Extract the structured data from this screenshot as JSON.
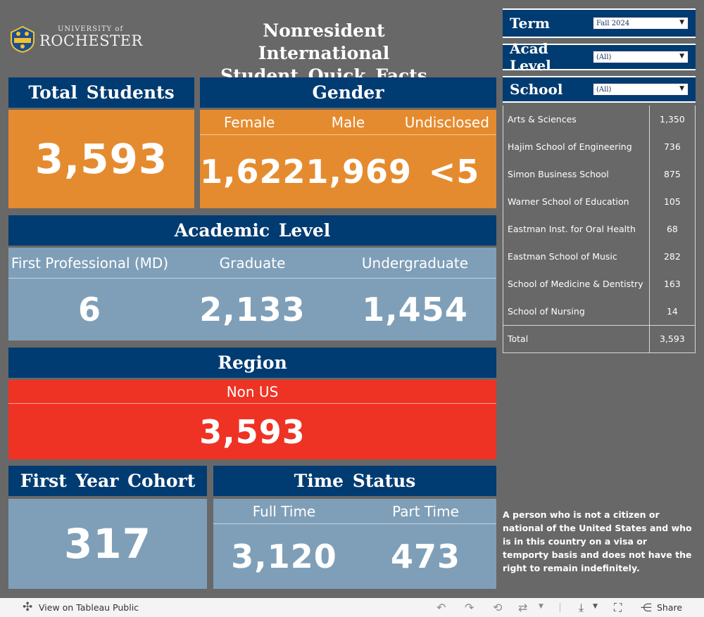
{
  "header": {
    "logo_small": "UNIVERSITY of",
    "logo_large": "ROCHESTER",
    "title_line1": "Nonresident International",
    "title_line2": "Student Quick Facts"
  },
  "total_students": {
    "header": "Total Students",
    "value": "3,593"
  },
  "gender": {
    "header": "Gender",
    "columns": [
      {
        "label": "Female",
        "value": "1,622"
      },
      {
        "label": "Male",
        "value": "1,969"
      },
      {
        "label": "Undisclosed",
        "value": "<5"
      }
    ]
  },
  "academic_level": {
    "header": "Academic Level",
    "columns": [
      {
        "label": "First Professional (MD)",
        "value": "6"
      },
      {
        "label": "Graduate",
        "value": "2,133"
      },
      {
        "label": "Undergraduate",
        "value": "1,454"
      }
    ]
  },
  "region": {
    "header": "Region",
    "label": "Non US",
    "value": "3,593"
  },
  "first_year_cohort": {
    "header": "First Year Cohort",
    "value": "317"
  },
  "time_status": {
    "header": "Time Status",
    "columns": [
      {
        "label": "Full Time",
        "value": "3,120"
      },
      {
        "label": "Part Time",
        "value": "473"
      }
    ]
  },
  "filters": {
    "term": {
      "label": "Term",
      "value": "Fall 2024"
    },
    "acad_level": {
      "label": "Acad Level",
      "value": "(All)"
    },
    "school": {
      "label": "School",
      "value": "(All)"
    }
  },
  "schools": {
    "rows": [
      {
        "name": "Arts & Sciences",
        "value": "1,350"
      },
      {
        "name": "Hajim School of Engineering",
        "value": "736"
      },
      {
        "name": "Simon Business School",
        "value": "875"
      },
      {
        "name": "Warner School of Education",
        "value": "105"
      },
      {
        "name": "Eastman Inst. for Oral Health",
        "value": "68"
      },
      {
        "name": "Eastman School of Music",
        "value": "282"
      },
      {
        "name": "School of Medicine & Dentistry",
        "value": "163"
      },
      {
        "name": "School of Nursing",
        "value": "14"
      }
    ],
    "total": {
      "name": "Total",
      "value": "3,593"
    }
  },
  "definition": "A person who is not a citizen or national of the United States and who is in this country on a visa or temporty basis and does not have the right to remain indefinitely.",
  "footer": {
    "view_label": "View on Tableau Public",
    "share_label": "Share"
  },
  "colors": {
    "navy": "#003b71",
    "orange": "#e58b2f",
    "steel": "#7f9fb8",
    "red": "#ee3324",
    "background": "#686868"
  }
}
